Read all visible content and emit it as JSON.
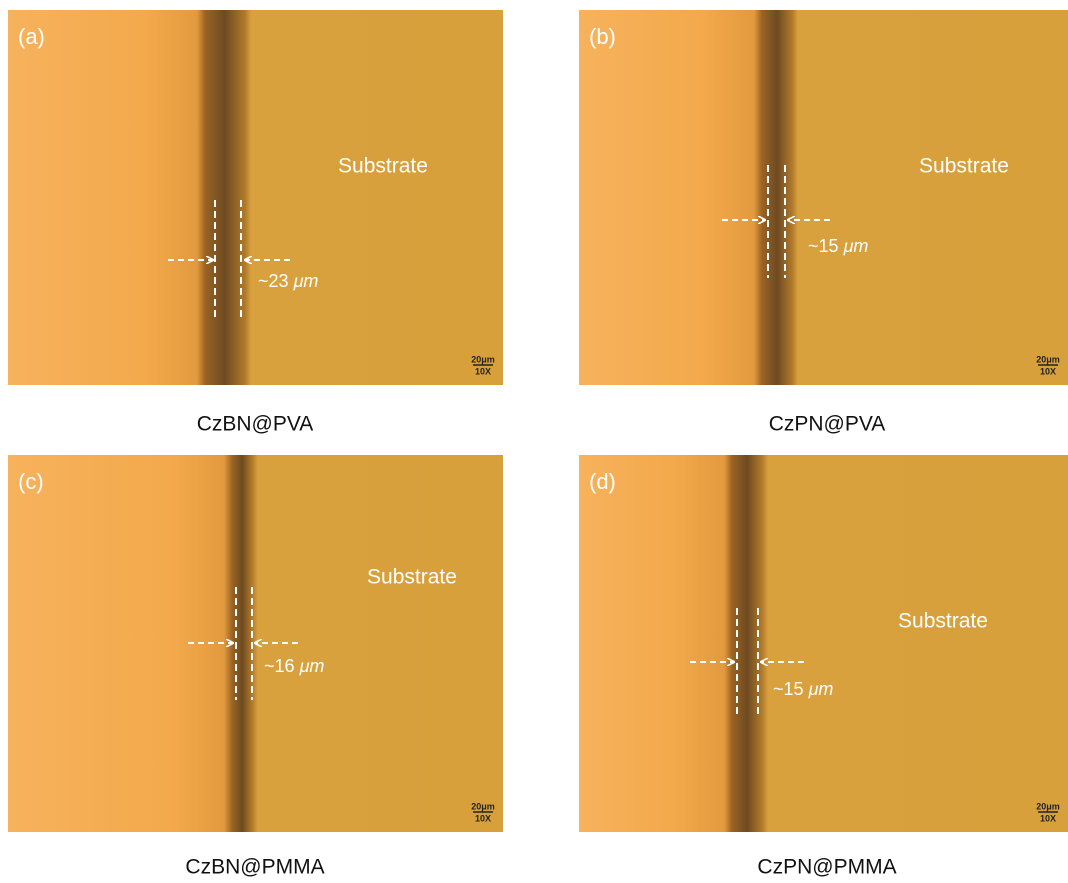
{
  "panels": [
    {
      "label": "(a)",
      "region": "Substrate",
      "thickness": "~23",
      "unit": "μm",
      "scale": "20μm",
      "magnification": "10X",
      "caption": "CzBN@PVA"
    },
    {
      "label": "(b)",
      "region": "Substrate",
      "thickness": "~15",
      "unit": "μm",
      "scale": "20μm",
      "magnification": "10X",
      "caption": "CzPN@PVA"
    },
    {
      "label": "(c)",
      "region": "Substrate",
      "thickness": "~16",
      "unit": "μm",
      "scale": "20μm",
      "magnification": "10X",
      "caption": "CzBN@PMMA"
    },
    {
      "label": "(d)",
      "region": "Substrate",
      "thickness": "~15",
      "unit": "μm",
      "scale": "20μm",
      "magnification": "10X",
      "caption": "CzPN@PMMA"
    }
  ]
}
